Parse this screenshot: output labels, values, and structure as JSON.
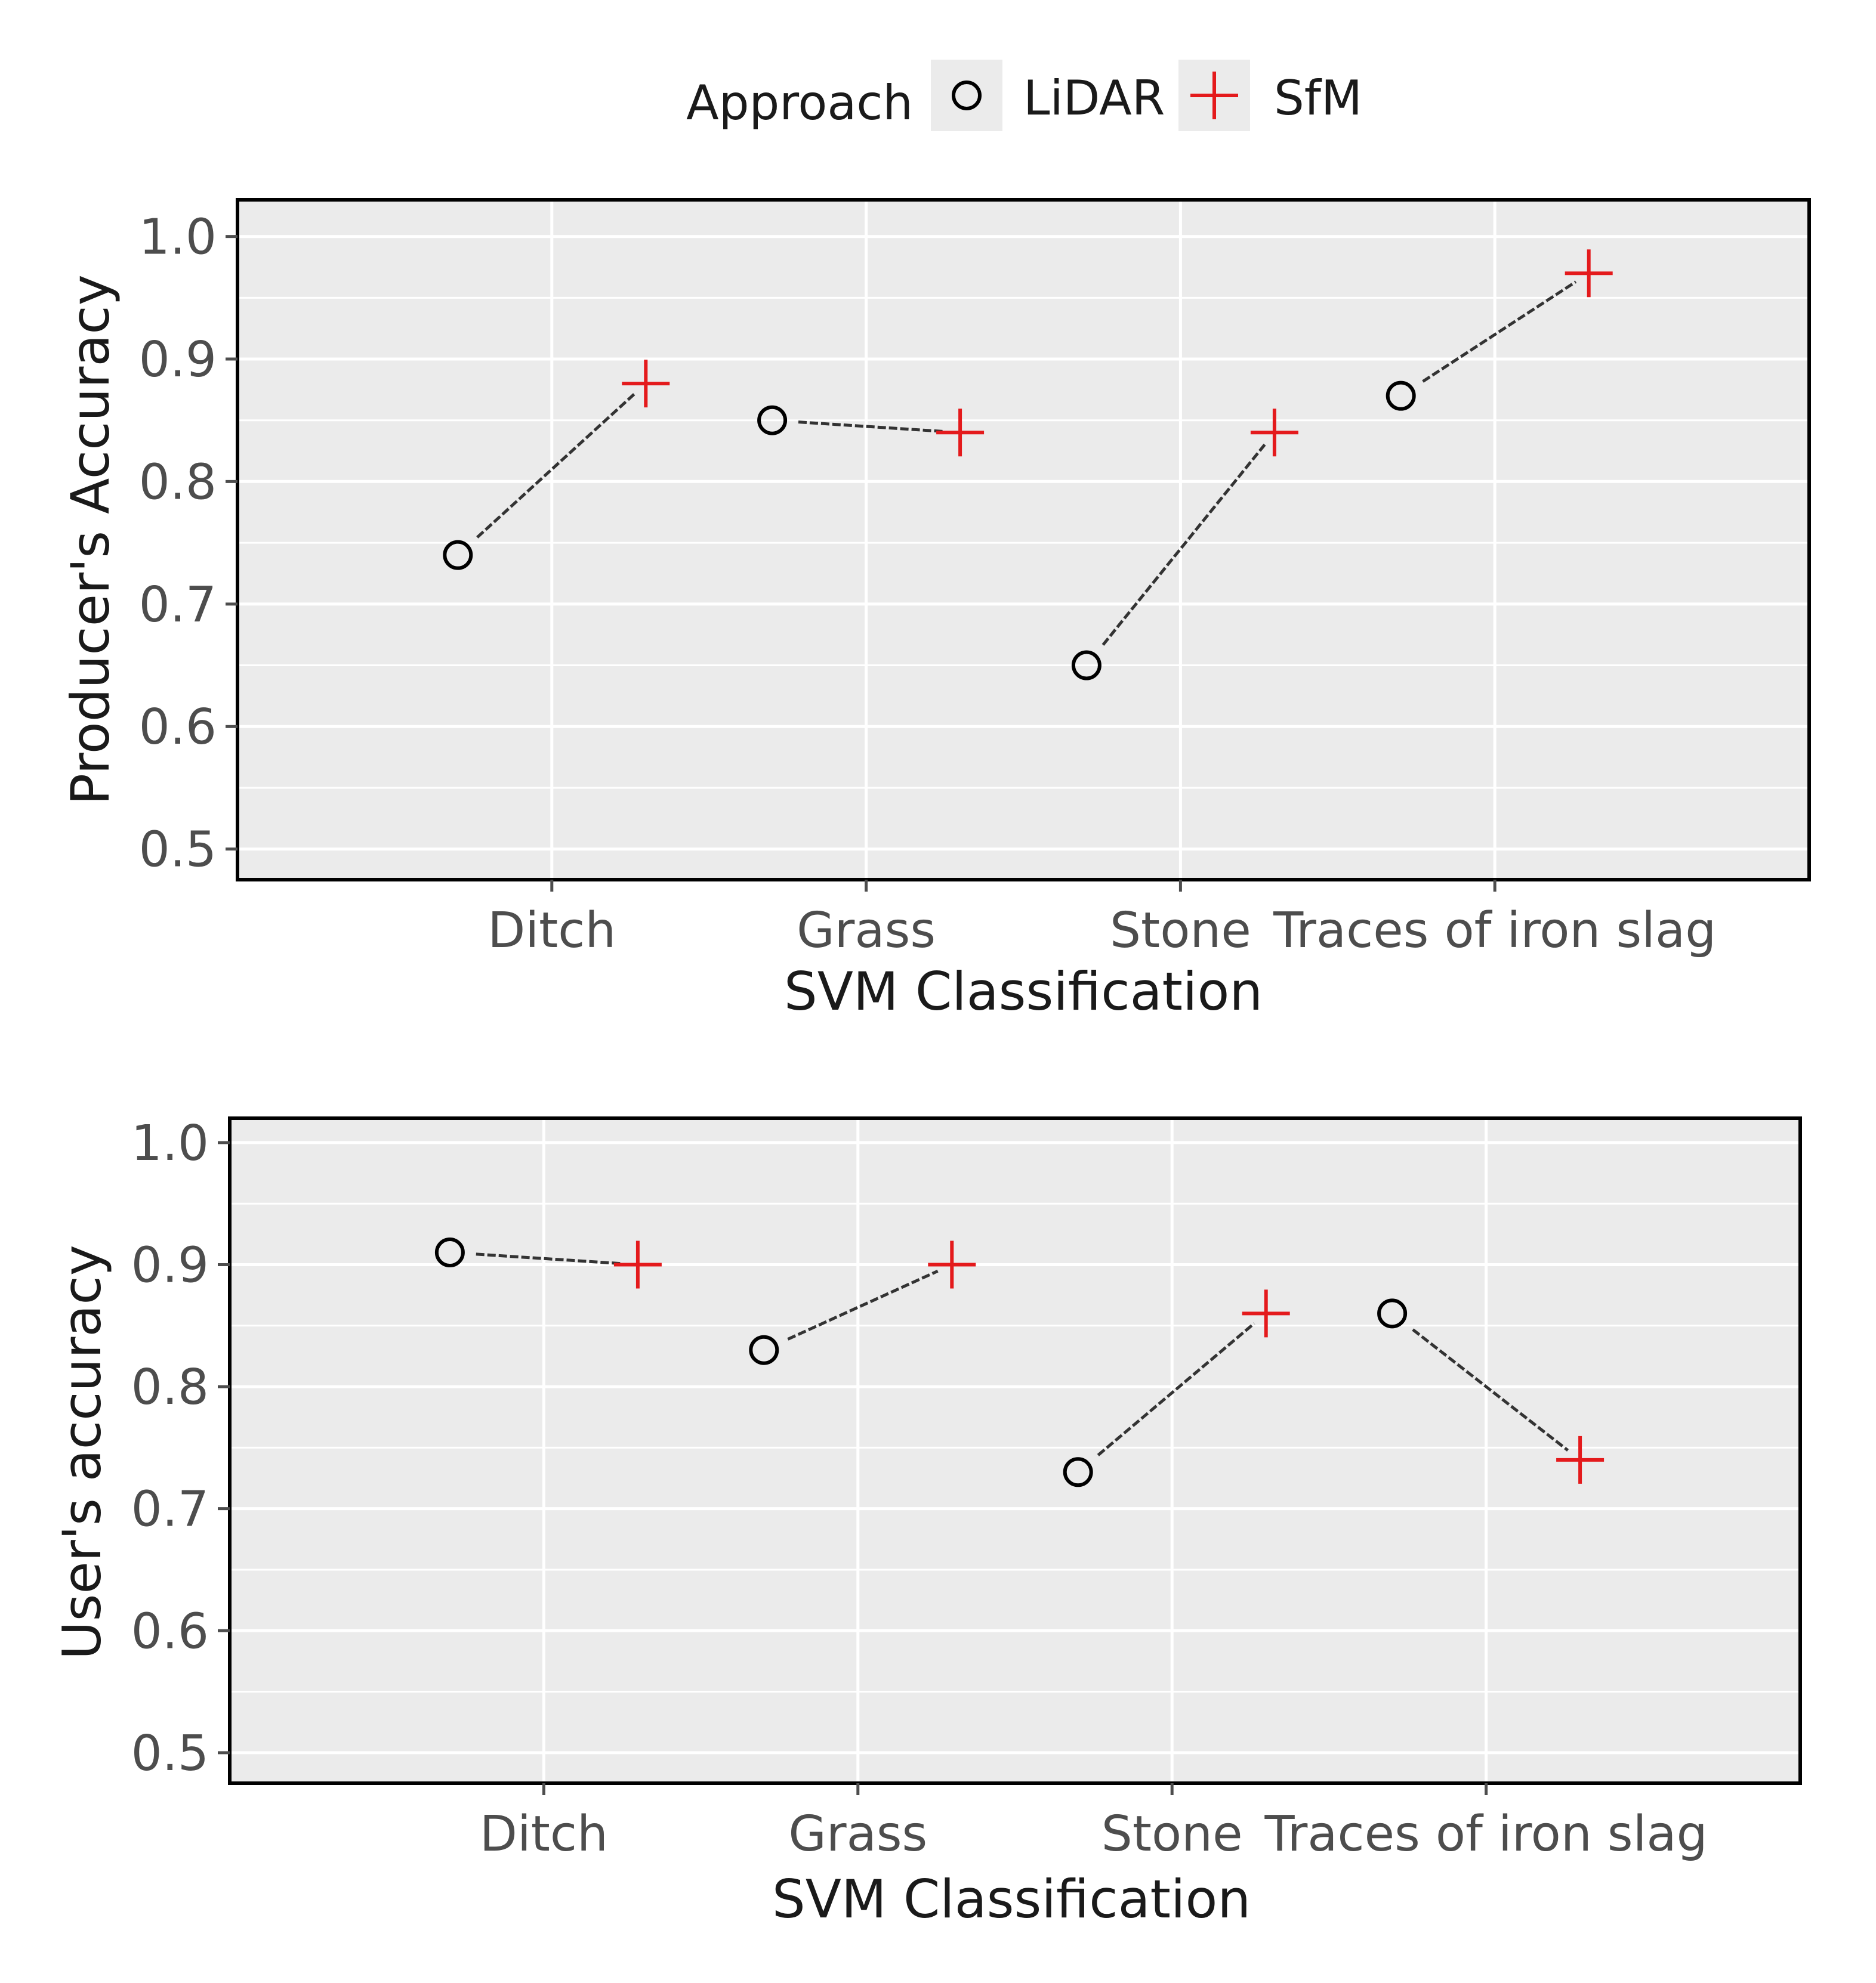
{
  "legend": {
    "title": "Approach",
    "items": [
      {
        "name": "LiDAR",
        "shape": "circle",
        "color": "#000000"
      },
      {
        "name": "SfM",
        "shape": "plus",
        "color": "#e41a1c"
      }
    ]
  },
  "style": {
    "panel_bg": "#ebebeb",
    "grid_color": "#ffffff",
    "border_color": "#000000",
    "connector_color": "#333333",
    "tick_color": "#4d4d4d"
  },
  "chart_data": [
    {
      "type": "scatter",
      "title": "",
      "xlabel": "SVM Classification",
      "ylabel": "Producer's Accuracy",
      "categories": [
        "Ditch",
        "Grass",
        "Stone",
        "Traces of iron slag"
      ],
      "ylim": [
        0.475,
        1.03
      ],
      "yticks": [
        0.5,
        0.6,
        0.7,
        0.8,
        0.9,
        1.0
      ],
      "ytick_labels": [
        "0.5",
        "0.6",
        "0.7",
        "0.8",
        "0.9",
        "1.0"
      ],
      "grid": true,
      "series": [
        {
          "name": "LiDAR",
          "values": [
            0.74,
            0.85,
            0.65,
            0.87
          ]
        },
        {
          "name": "SfM",
          "values": [
            0.88,
            0.84,
            0.84,
            0.97
          ]
        }
      ]
    },
    {
      "type": "scatter",
      "title": "",
      "xlabel": "SVM Classification",
      "ylabel": "User's accuracy",
      "categories": [
        "Ditch",
        "Grass",
        "Stone",
        "Traces of iron slag"
      ],
      "ylim": [
        0.475,
        1.02
      ],
      "yticks": [
        0.5,
        0.6,
        0.7,
        0.8,
        0.9,
        1.0
      ],
      "ytick_labels": [
        "0.5",
        "0.6",
        "0.7",
        "0.8",
        "0.9",
        "1.0"
      ],
      "grid": true,
      "series": [
        {
          "name": "LiDAR",
          "values": [
            0.91,
            0.83,
            0.73,
            0.86
          ]
        },
        {
          "name": "SfM",
          "values": [
            0.9,
            0.9,
            0.86,
            0.74
          ]
        }
      ]
    }
  ]
}
